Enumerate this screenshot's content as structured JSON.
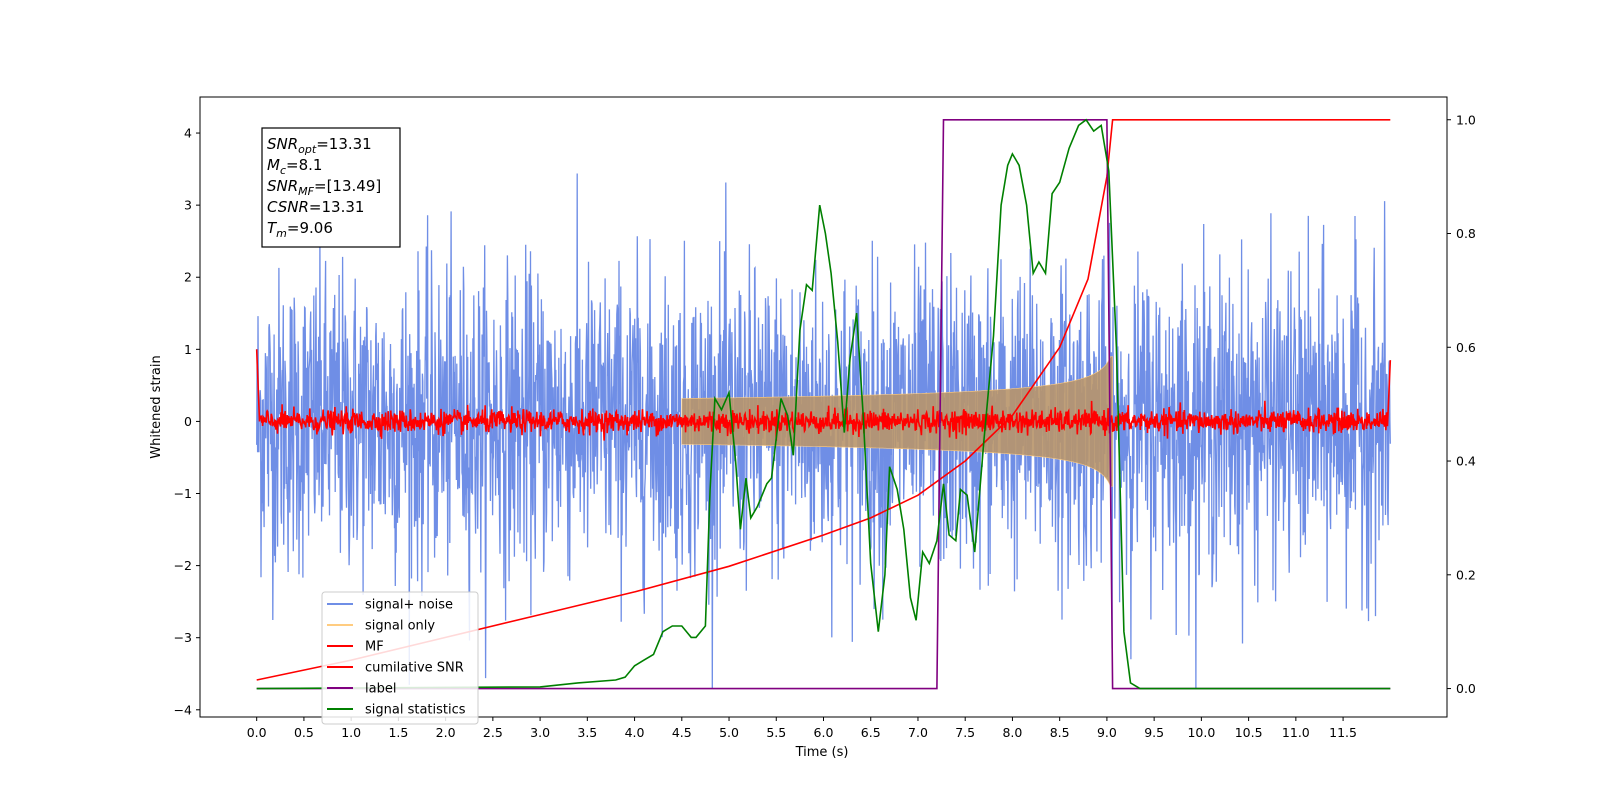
{
  "annotation": {
    "lines": [
      {
        "sym": "SNR",
        "sub": "opt",
        "val": "=13.31"
      },
      {
        "sym": "M",
        "sub": "c",
        "val": "=8.1"
      },
      {
        "sym": "SNR",
        "sub": "MF",
        "val": "=[13.49]"
      },
      {
        "sym": "CSNR",
        "sub": "",
        "val": "=13.31"
      },
      {
        "sym": "T",
        "sub": "m",
        "val": "=9.06"
      }
    ]
  },
  "chart_data": {
    "type": "line",
    "xlabel": "Time (s)",
    "ylabel": "Whitened strain",
    "xlim": [
      -0.6,
      12.6
    ],
    "ylim_left": [
      -4.1,
      4.5
    ],
    "ylim_right": [
      -0.05,
      1.04
    ],
    "x_ticks": [
      "0.0",
      "0.5",
      "1.0",
      "1.5",
      "2.0",
      "2.5",
      "3.0",
      "3.5",
      "4.0",
      "4.5",
      "5.0",
      "5.5",
      "6.0",
      "6.5",
      "7.0",
      "7.5",
      "8.0",
      "8.5",
      "9.0",
      "9.5",
      "10.0",
      "10.5",
      "11.0",
      "11.5"
    ],
    "y_ticks_left": [
      "−4",
      "−3",
      "−2",
      "−1",
      "0",
      "1",
      "2",
      "3",
      "4"
    ],
    "y_ticks_right": [
      "0.0",
      "0.2",
      "0.4",
      "0.6",
      "0.8",
      "1.0"
    ],
    "legend_position": "lower-left",
    "series": [
      {
        "name": "signal+ noise",
        "color": "#6f8ee6",
        "axis": "left",
        "description": "noise band, roughly ±1.3 std, peaks to ±3.5"
      },
      {
        "name": "signal only",
        "color": "#ffcc80",
        "axis": "left",
        "chirp_end": 9.06,
        "envelope_max": 0.9
      },
      {
        "name": "MF",
        "color": "#ff0000",
        "axis": "left",
        "level": 0.0,
        "noise": 0.08
      },
      {
        "name": "cumilative SNR",
        "color": "#ff0000",
        "axis": "right",
        "points": [
          [
            0.0,
            0.015
          ],
          [
            1.0,
            0.05
          ],
          [
            2.0,
            0.09
          ],
          [
            3.0,
            0.13
          ],
          [
            4.0,
            0.17
          ],
          [
            5.0,
            0.215
          ],
          [
            6.0,
            0.27
          ],
          [
            6.5,
            0.3
          ],
          [
            7.0,
            0.34
          ],
          [
            7.5,
            0.4
          ],
          [
            8.0,
            0.48
          ],
          [
            8.5,
            0.6
          ],
          [
            8.8,
            0.72
          ],
          [
            9.0,
            0.9
          ],
          [
            9.06,
            1.0
          ],
          [
            12.0,
            1.0
          ]
        ]
      },
      {
        "name": "label",
        "color": "#800080",
        "axis": "right",
        "points": [
          [
            0.0,
            0.0
          ],
          [
            7.2,
            0.0
          ],
          [
            7.27,
            1.0
          ],
          [
            9.0,
            1.0
          ],
          [
            9.06,
            0.0
          ],
          [
            12.0,
            0.0
          ]
        ]
      },
      {
        "name": "signal statistics",
        "color": "#008000",
        "axis": "right",
        "points": [
          [
            0.0,
            0.0
          ],
          [
            3.0,
            0.003
          ],
          [
            3.4,
            0.01
          ],
          [
            3.8,
            0.015
          ],
          [
            3.9,
            0.02
          ],
          [
            4.0,
            0.04
          ],
          [
            4.1,
            0.05
          ],
          [
            4.2,
            0.06
          ],
          [
            4.3,
            0.1
          ],
          [
            4.4,
            0.11
          ],
          [
            4.5,
            0.11
          ],
          [
            4.6,
            0.09
          ],
          [
            4.65,
            0.09
          ],
          [
            4.75,
            0.11
          ],
          [
            4.8,
            0.35
          ],
          [
            4.85,
            0.51
          ],
          [
            4.92,
            0.49
          ],
          [
            5.0,
            0.52
          ],
          [
            5.07,
            0.4
          ],
          [
            5.12,
            0.28
          ],
          [
            5.18,
            0.37
          ],
          [
            5.23,
            0.3
          ],
          [
            5.3,
            0.32
          ],
          [
            5.4,
            0.36
          ],
          [
            5.45,
            0.37
          ],
          [
            5.55,
            0.51
          ],
          [
            5.62,
            0.48
          ],
          [
            5.68,
            0.41
          ],
          [
            5.75,
            0.63
          ],
          [
            5.82,
            0.71
          ],
          [
            5.88,
            0.7
          ],
          [
            5.96,
            0.85
          ],
          [
            6.02,
            0.8
          ],
          [
            6.08,
            0.73
          ],
          [
            6.15,
            0.61
          ],
          [
            6.22,
            0.45
          ],
          [
            6.28,
            0.58
          ],
          [
            6.35,
            0.66
          ],
          [
            6.42,
            0.48
          ],
          [
            6.5,
            0.22
          ],
          [
            6.58,
            0.1
          ],
          [
            6.65,
            0.2
          ],
          [
            6.7,
            0.39
          ],
          [
            6.78,
            0.35
          ],
          [
            6.85,
            0.28
          ],
          [
            6.92,
            0.16
          ],
          [
            6.98,
            0.12
          ],
          [
            7.05,
            0.24
          ],
          [
            7.12,
            0.22
          ],
          [
            7.2,
            0.26
          ],
          [
            7.27,
            0.36
          ],
          [
            7.33,
            0.27
          ],
          [
            7.4,
            0.26
          ],
          [
            7.45,
            0.35
          ],
          [
            7.52,
            0.34
          ],
          [
            7.6,
            0.24
          ],
          [
            7.7,
            0.44
          ],
          [
            7.8,
            0.62
          ],
          [
            7.88,
            0.85
          ],
          [
            7.95,
            0.92
          ],
          [
            8.0,
            0.94
          ],
          [
            8.07,
            0.92
          ],
          [
            8.15,
            0.85
          ],
          [
            8.22,
            0.73
          ],
          [
            8.28,
            0.75
          ],
          [
            8.35,
            0.73
          ],
          [
            8.42,
            0.87
          ],
          [
            8.5,
            0.89
          ],
          [
            8.6,
            0.95
          ],
          [
            8.7,
            0.99
          ],
          [
            8.78,
            1.0
          ],
          [
            8.86,
            0.98
          ],
          [
            8.94,
            0.99
          ],
          [
            9.02,
            0.91
          ],
          [
            9.1,
            0.6
          ],
          [
            9.18,
            0.1
          ],
          [
            9.25,
            0.01
          ],
          [
            9.35,
            0.0
          ],
          [
            12.0,
            0.0
          ]
        ]
      }
    ]
  }
}
